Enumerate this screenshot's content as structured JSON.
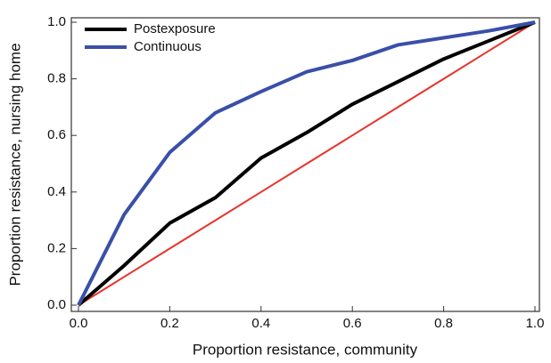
{
  "chart_data": {
    "type": "line",
    "xlabel": "Proportion resistance, community",
    "ylabel": "Proportion resistance, nursing home",
    "x": [
      0,
      0.1,
      0.2,
      0.3,
      0.4,
      0.5,
      0.6,
      0.7,
      0.8,
      0.9,
      1
    ],
    "series": [
      {
        "name": "Postexposure",
        "color": "#000000",
        "values": [
          0,
          0.14,
          0.29,
          0.38,
          0.52,
          0.61,
          0.71,
          0.79,
          0.87,
          0.935,
          1
        ]
      },
      {
        "name": "Continuous",
        "color": "#3a4fa8",
        "values": [
          0,
          0.32,
          0.54,
          0.68,
          0.755,
          0.825,
          0.865,
          0.92,
          0.945,
          0.97,
          1
        ]
      },
      {
        "color": "#e8332a",
        "values": [
          0,
          0.1,
          0.2,
          0.3,
          0.4,
          0.5,
          0.6,
          0.7,
          0.8,
          0.9,
          1
        ]
      }
    ],
    "xlim": [
      0,
      1
    ],
    "ylim": [
      0,
      1
    ],
    "xticks": [
      {
        "value": 0,
        "label": "0.0"
      },
      0.2,
      0.4,
      0.6,
      0.8,
      {
        "value": 1,
        "label": "1.0"
      }
    ],
    "yticks": [
      {
        "value": 0,
        "label": "0.0"
      },
      0.2,
      0.4,
      0.6,
      0.8,
      {
        "value": 1,
        "label": "1.0"
      }
    ],
    "legend": "upper-left"
  }
}
